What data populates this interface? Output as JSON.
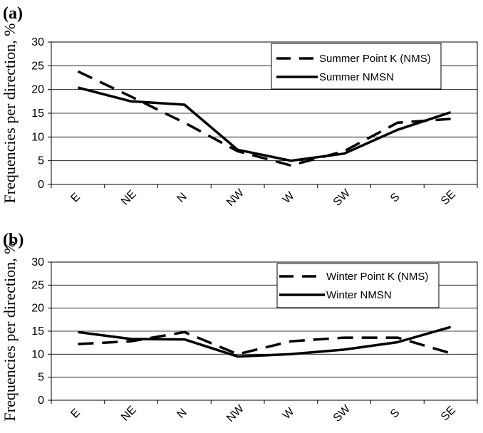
{
  "chart_data": [
    {
      "type": "line",
      "panel_label": "(a)",
      "ylabel": "Frequencies per direction, %",
      "xlabel": "",
      "categories": [
        "E",
        "NE",
        "N",
        "NW",
        "W",
        "SW",
        "S",
        "SE"
      ],
      "ylim": [
        0,
        30
      ],
      "yticks": [
        "0",
        "5",
        "10",
        "15",
        "20",
        "25",
        "30"
      ],
      "grid": true,
      "legend_position": "top-right",
      "series": [
        {
          "name": "Summer Point K (NMS)",
          "style": "dashed",
          "values": [
            23.8,
            18.5,
            13.0,
            7.0,
            4.0,
            7.0,
            13.0,
            13.8
          ]
        },
        {
          "name": "Summer NMSN",
          "style": "solid",
          "values": [
            20.4,
            17.5,
            16.8,
            7.3,
            5.0,
            6.5,
            11.5,
            15.2
          ]
        }
      ]
    },
    {
      "type": "line",
      "panel_label": "(b)",
      "ylabel": "Frequencies per direction, %",
      "xlabel": "",
      "categories": [
        "E",
        "NE",
        "N",
        "NW",
        "W",
        "SW",
        "S",
        "SE"
      ],
      "ylim": [
        0,
        30
      ],
      "yticks": [
        "0",
        "5",
        "10",
        "15",
        "20",
        "25",
        "30"
      ],
      "grid": true,
      "legend_position": "top-right",
      "series": [
        {
          "name": "Winter Point K (NMS)",
          "style": "dashed",
          "values": [
            12.2,
            12.8,
            14.8,
            10.0,
            12.8,
            13.6,
            13.6,
            10.2
          ]
        },
        {
          "name": "Winter NMSN",
          "style": "solid",
          "values": [
            14.8,
            13.3,
            13.2,
            9.5,
            10.0,
            11.0,
            12.6,
            15.9
          ]
        }
      ]
    }
  ]
}
